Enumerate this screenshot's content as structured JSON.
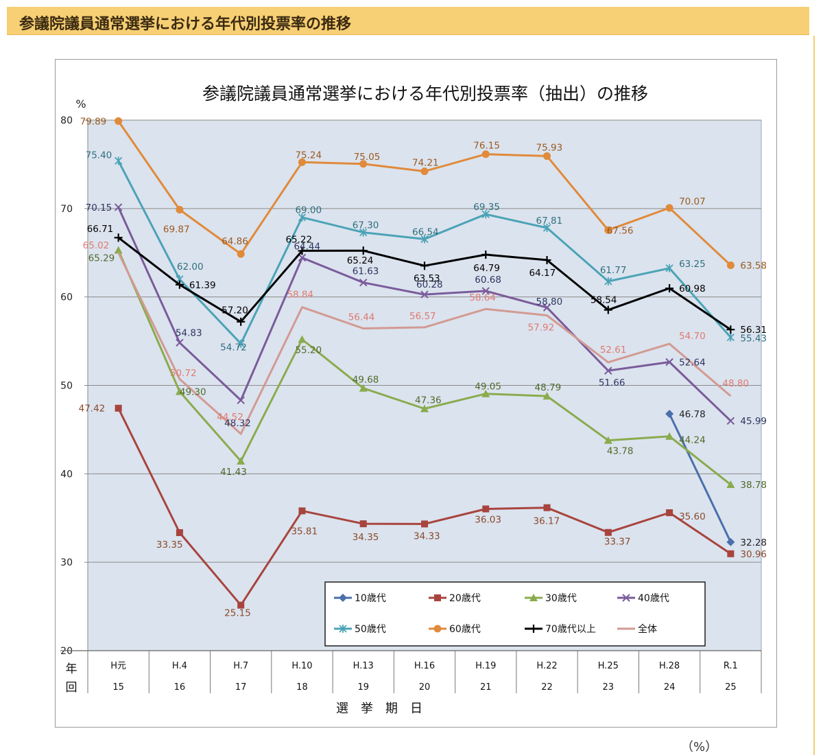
{
  "page": {
    "banner_title": "参議院議員通常選挙における年代別投票率の推移",
    "unit_note": "（%）"
  },
  "chart_data": {
    "type": "line",
    "title": "参議院議員通常選挙における年代別投票率（抽出）の推移",
    "ylabel": "%",
    "xlabel": "選　挙　期　日",
    "row_label_year": "年",
    "row_label_round": "回",
    "ylim": [
      20,
      80
    ],
    "yticks": [
      20,
      30,
      40,
      50,
      60,
      70,
      80
    ],
    "grid": true,
    "legend_position": "bottom-right",
    "categories": [
      "H元",
      "H.4",
      "H.7",
      "H.10",
      "H.13",
      "H.16",
      "H.19",
      "H.22",
      "H.25",
      "H.28",
      "R.1"
    ],
    "rounds": [
      "15",
      "16",
      "17",
      "18",
      "19",
      "20",
      "21",
      "22",
      "23",
      "24",
      "25"
    ],
    "series": [
      {
        "name": "10歳代",
        "color": "#4a6fab",
        "marker": "diamond",
        "label_color": "#222222",
        "values": [
          null,
          null,
          null,
          null,
          null,
          null,
          null,
          null,
          null,
          46.78,
          32.28
        ],
        "labels": [
          null,
          null,
          null,
          null,
          null,
          null,
          null,
          null,
          null,
          "46.78",
          "32.28"
        ]
      },
      {
        "name": "20歳代",
        "color": "#a8443e",
        "marker": "square",
        "label_color": "#8a4a2a",
        "values": [
          47.42,
          33.35,
          25.15,
          35.81,
          34.35,
          34.33,
          36.03,
          36.17,
          33.37,
          35.6,
          30.96
        ],
        "labels": [
          "47.42",
          "33.35",
          "25.15",
          "35.81",
          "34.35",
          "34.33",
          "36.03",
          "36.17",
          "33.37",
          "35.60",
          "30.96"
        ]
      },
      {
        "name": "30歳代",
        "color": "#8aab4e",
        "marker": "triangle",
        "label_color": "#4f6a2a",
        "values": [
          65.29,
          49.3,
          41.43,
          55.2,
          49.68,
          47.36,
          49.05,
          48.79,
          43.78,
          44.24,
          38.78
        ],
        "labels": [
          "65.29",
          "49.30",
          "41.43",
          "55.20",
          "49.68",
          "47.36",
          "49.05",
          "48.79",
          "43.78",
          "44.24",
          "38.78"
        ]
      },
      {
        "name": "40歳代",
        "color": "#7a5b9a",
        "marker": "x",
        "label_color": "#2e3560",
        "values": [
          70.15,
          54.83,
          48.32,
          64.44,
          61.63,
          60.28,
          60.68,
          58.8,
          51.66,
          52.64,
          45.99
        ],
        "labels": [
          "70.15",
          "54.83",
          "48.32",
          "64.44",
          "61.63",
          "60.28",
          "60.68",
          "58.80",
          "51.66",
          "52.64",
          "45.99"
        ]
      },
      {
        "name": "50歳代",
        "color": "#4ba3b6",
        "marker": "star",
        "label_color": "#2f6f7e",
        "values": [
          75.4,
          62.0,
          54.72,
          69.0,
          67.3,
          66.54,
          69.35,
          67.81,
          61.77,
          63.25,
          55.43
        ],
        "labels": [
          "75.40",
          "62.00",
          "54.72",
          "69.00",
          "67.30",
          "66.54",
          "69.35",
          "67.81",
          "61.77",
          "63.25",
          "55.43"
        ]
      },
      {
        "name": "60歳代",
        "color": "#e08a3a",
        "marker": "circle",
        "label_color": "#9b5a20",
        "values": [
          79.89,
          69.87,
          64.86,
          75.24,
          75.05,
          74.21,
          76.15,
          75.93,
          67.56,
          70.07,
          63.58
        ],
        "labels": [
          "79.89",
          "69.87",
          "64.86",
          "75.24",
          "75.05",
          "74.21",
          "76.15",
          "75.93",
          "67.56",
          "70.07",
          "63.58"
        ]
      },
      {
        "name": "70歳代以上",
        "color": "#000000",
        "marker": "plus",
        "label_color": "#000000",
        "values": [
          66.71,
          61.39,
          57.2,
          65.22,
          65.24,
          63.53,
          64.79,
          64.17,
          58.54,
          60.98,
          56.31
        ],
        "labels": [
          "66.71",
          "61.39",
          "57.20",
          "65.22",
          "65.24",
          "63.53",
          "64.79",
          "64.17",
          "58.54",
          "60.98",
          "56.31"
        ]
      },
      {
        "name": "全体",
        "color": "#d29a93",
        "marker": "none",
        "label_color": "#e07a70",
        "values": [
          65.02,
          50.72,
          44.52,
          58.84,
          56.44,
          56.57,
          58.64,
          57.92,
          52.61,
          54.7,
          48.8
        ],
        "labels": [
          "65.02",
          "50.72",
          "44.52",
          "58.84",
          "56.44",
          "56.57",
          "58.64",
          "57.92",
          "52.61",
          "54.70",
          "48.80"
        ]
      }
    ]
  }
}
